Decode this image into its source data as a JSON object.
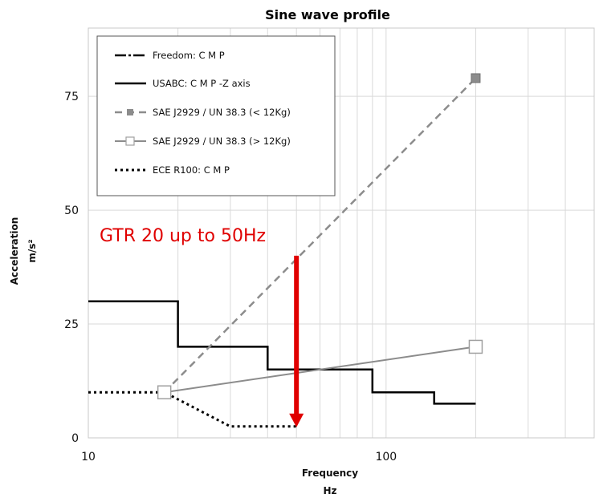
{
  "chart_data": {
    "type": "line",
    "title": "Sine wave profile",
    "xlabel": "Frequency",
    "xlabel_unit": "Hz",
    "ylabel": "Acceleration",
    "ylabel_unit": "m/s²",
    "x_scale": "log",
    "xlim": [
      10,
      500
    ],
    "ylim": [
      0,
      90
    ],
    "x_ticks": [
      10,
      100
    ],
    "x_tick_labels": [
      "10",
      "100"
    ],
    "y_ticks": [
      0,
      25,
      50,
      75
    ],
    "y_tick_labels": [
      "0",
      "25",
      "50",
      "75"
    ],
    "grid": true,
    "legend_position": "top-left",
    "series": [
      {
        "name": "Freedom: C M P",
        "style": "dash-dot",
        "color": "#000000",
        "x": [
          10,
          20
        ],
        "y": [
          30,
          30
        ]
      },
      {
        "name": "USABC: C M P -Z axis",
        "style": "step",
        "color": "#000000",
        "x": [
          10,
          20,
          20,
          40,
          40,
          90,
          90,
          145,
          145,
          200
        ],
        "y": [
          30,
          30,
          20,
          20,
          15,
          15,
          10,
          10,
          7.5,
          7.5
        ]
      },
      {
        "name": "SAE J2929 / UN 38.3 (< 12Kg)",
        "style": "dashed",
        "marker": "square-filled",
        "color": "#8c8c8c",
        "x": [
          18,
          200
        ],
        "y": [
          10,
          79
        ]
      },
      {
        "name": "SAE J2929 / UN 38.3 (> 12Kg)",
        "style": "solid",
        "marker": "square-open",
        "color": "#8c8c8c",
        "x": [
          18,
          200
        ],
        "y": [
          10,
          20
        ]
      },
      {
        "name": "ECE R100: C M P",
        "style": "dotted",
        "color": "#000000",
        "x": [
          10,
          18,
          30,
          50
        ],
        "y": [
          10,
          10,
          2.5,
          2.5
        ]
      }
    ],
    "annotations": [
      {
        "text": "GTR 20 up to 50Hz",
        "color": "#e00000",
        "arrow_x": 50,
        "arrow_from_y": 40,
        "arrow_to_y": 2.5
      }
    ]
  }
}
